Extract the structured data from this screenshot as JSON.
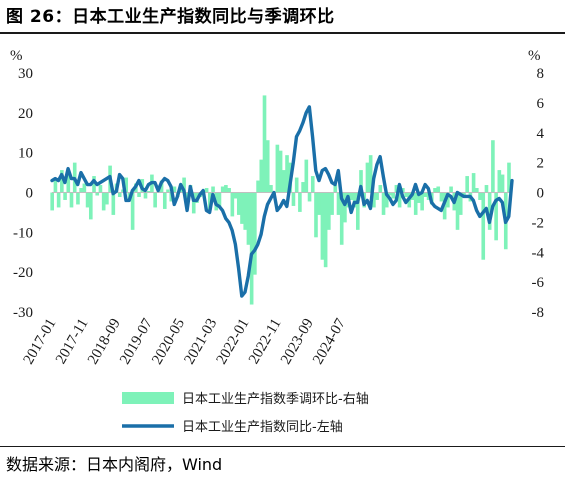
{
  "title": "图 26：日本工业生产指数同比与季调环比",
  "source": "数据来源：日本内阁府，Wind",
  "colors": {
    "area": "#7ef2b9",
    "line": "#1a6fa8",
    "axis": "#1a1a1a"
  },
  "chart_data": {
    "type": "area+line",
    "left_unit": "%",
    "right_unit": "%",
    "left_axis": {
      "range": [
        -30,
        30
      ],
      "ticks": [
        -30,
        -20,
        -10,
        0,
        10,
        20,
        30
      ]
    },
    "right_axis": {
      "range": [
        -8,
        8
      ],
      "ticks": [
        -8,
        -6,
        -4,
        -2,
        0,
        2,
        4,
        6,
        8
      ]
    },
    "x_tick_labels": [
      "2017-01",
      "2017-11",
      "2018-09",
      "2019-07",
      "2020-05",
      "2021-03",
      "2022-01",
      "2022-11",
      "2023-09",
      "2024-07"
    ],
    "start_month": "2017-01",
    "series": [
      {
        "name": "日本工业生产指数季调环比-右轴",
        "axis": "right",
        "style": "area",
        "values": [
          -1.2,
          0.8,
          -1.0,
          1.5,
          -0.5,
          1.2,
          -1.0,
          2.0,
          -0.8,
          0.3,
          0.6,
          -1.0,
          -1.8,
          1.1,
          -0.2,
          0.5,
          -1.2,
          -0.8,
          1.8,
          -1.5,
          0.6,
          -0.3,
          0.2,
          1.0,
          -0.5,
          -2.5,
          0.6,
          -0.3,
          0.9,
          -0.4,
          0.1,
          1.2,
          -1.0,
          0.3,
          0.8,
          -1.1,
          0.2,
          -0.6,
          0.4,
          -0.3,
          0.5,
          1.0,
          -0.9,
          0.5,
          -1.4,
          -0.7,
          -0.3,
          -0.2,
          0.3,
          -1.2,
          0.4,
          -1.2,
          -1.0,
          0.4,
          0.5,
          0.3,
          -1.6,
          -0.4,
          -1.5,
          -2.1,
          -2.5,
          -3.5,
          -7.5,
          -5.5,
          0.8,
          2.2,
          6.5,
          3.5,
          0.5,
          -0.2,
          3.2,
          2.8,
          1.5,
          2.5,
          2.0,
          -0.9,
          1.0,
          -1.3,
          0.7,
          2.2,
          -0.6,
          1.1,
          -3.0,
          -1.5,
          -4.5,
          -5.0,
          -2.5,
          -1.5,
          0.5,
          -1.5,
          -3.5,
          -2.0,
          -1.0,
          -0.5,
          -1.0,
          -2.5,
          1.5,
          -1.0,
          2.0,
          2.5,
          -1.0,
          -0.5,
          0.5,
          -1.5,
          -1.0,
          -0.2,
          -0.4,
          0.5,
          -1.0,
          0.3,
          -0.3,
          -1.0,
          -0.5,
          -1.5,
          -0.7,
          -1.2,
          -0.3,
          -0.5,
          -0.8,
          0.3,
          0.4,
          -0.6,
          -1.8,
          -1.0,
          0.4,
          -1.2,
          -2.5,
          -1.5,
          -0.2,
          1.1,
          -0.6,
          1.3,
          0.3,
          -0.5,
          -4.5,
          0.5,
          -2.5,
          3.5,
          -3.2,
          1.5,
          1.2,
          -3.8,
          2.0
        ]
      },
      {
        "name": "日本工业生产指数同比-左轴",
        "axis": "left",
        "style": "line",
        "values": [
          3.0,
          3.5,
          3.0,
          4.5,
          2.5,
          6.0,
          3.5,
          3.5,
          2.0,
          5.0,
          3.5,
          2.0,
          2.0,
          3.0,
          2.0,
          2.5,
          3.0,
          3.5,
          4.0,
          -0.3,
          0.3,
          4.5,
          3.5,
          -2.0,
          -2.0,
          0.5,
          1.5,
          3.0,
          1.0,
          0.5,
          2.0,
          2.5,
          2.5,
          0.5,
          2.5,
          3.5,
          3.0,
          1.5,
          -3.0,
          -1.0,
          2.0,
          0.5,
          -4.5,
          1.5,
          -2.0,
          -2.0,
          -0.5,
          0.5,
          -4.5,
          -5.0,
          -0.5,
          -3.0,
          -3.5,
          -4.5,
          -6.5,
          -7.5,
          -9.5,
          -13.0,
          -19.0,
          -26.0,
          -25.0,
          -21.0,
          -15.5,
          -14.5,
          -13.0,
          -10.5,
          -6.0,
          -3.0,
          -1.5,
          0.0,
          -4.5,
          -3.5,
          -2.0,
          -3.5,
          2.0,
          7.5,
          14.0,
          15.5,
          17.5,
          20.0,
          21.5,
          14.0,
          5.5,
          3.0,
          5.5,
          6.0,
          4.5,
          2.5,
          2.0,
          5.5,
          -1.5,
          -3.0,
          -1.0,
          -5.0,
          -2.5,
          -2.5,
          1.5,
          -3.0,
          -2.0,
          -4.0,
          3.5,
          7.0,
          9.0,
          4.0,
          -0.5,
          -1.5,
          -3.0,
          -2.0,
          2.0,
          -1.0,
          -2.5,
          -1.5,
          -0.5,
          2.0,
          -0.5,
          0.0,
          2.0,
          1.0,
          -2.5,
          -3.5,
          -4.0,
          -4.5,
          -2.5,
          -0.5,
          -1.0,
          -2.5,
          0.0,
          -0.5,
          -1.0,
          -1.0,
          -1.0,
          -2.0,
          -4.5,
          -6.0,
          -5.0,
          -4.0,
          -7.5,
          -3.5,
          -2.0,
          -1.5,
          -2.5,
          -7.5,
          -6.0,
          3.0
        ]
      }
    ]
  }
}
